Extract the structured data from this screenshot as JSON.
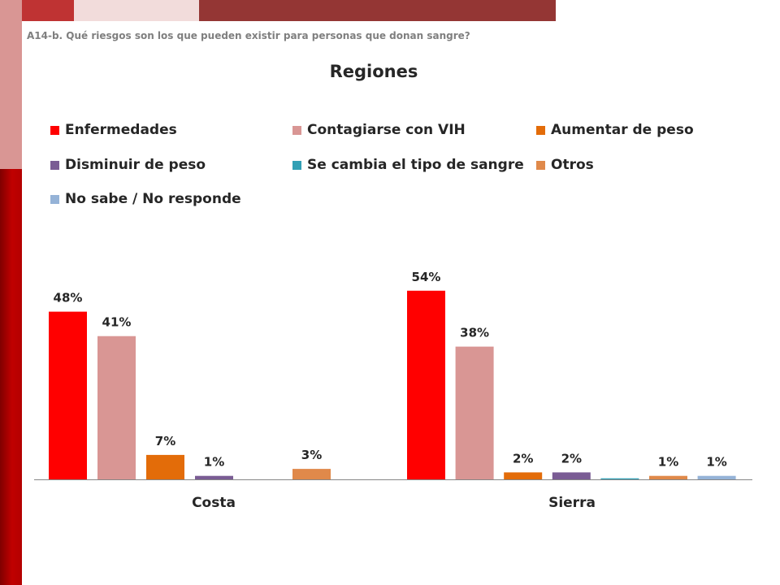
{
  "question": "A14-b. Qué riesgos son los que pueden existir para personas que donan sangre?",
  "title": "Regiones",
  "colors": {
    "bar_top_1": "#bf3333",
    "bar_top_2": "#f2dcdb",
    "bar_top_3": "#943634",
    "sidebar_top": "#d99694",
    "sidebar_bottom": "#c00000"
  },
  "chart_data": {
    "type": "bar",
    "title": "Regiones",
    "categories": [
      "Costa",
      "Sierra"
    ],
    "ylim": [
      0,
      60
    ],
    "grid": false,
    "legend_position": "top",
    "series": [
      {
        "name": "Enfermedades",
        "color": "#ff0000",
        "values": [
          48,
          54
        ],
        "labels": [
          "48%",
          "54%"
        ]
      },
      {
        "name": "Contagiarse con VIH",
        "color": "#d99694",
        "values": [
          41,
          38
        ],
        "labels": [
          "41%",
          "38%"
        ]
      },
      {
        "name": "Aumentar de peso",
        "color": "#e36c09",
        "values": [
          7,
          2
        ],
        "labels": [
          "7%",
          "2%"
        ]
      },
      {
        "name": "Disminuir de peso",
        "color": "#7a5c94",
        "values": [
          1,
          2
        ],
        "labels": [
          "1%",
          "2%"
        ]
      },
      {
        "name": "Se cambia el tipo de sangre",
        "color": "#31a0b5",
        "values": [
          0,
          0.3
        ],
        "labels": [
          "",
          ""
        ]
      },
      {
        "name": "Otros",
        "color": "#e0894a",
        "values": [
          3,
          1
        ],
        "labels": [
          "3%",
          "1%"
        ]
      },
      {
        "name": "No sabe / No responde",
        "color": "#95b3d7",
        "values": [
          0,
          1
        ],
        "labels": [
          "",
          "1%"
        ]
      }
    ]
  }
}
